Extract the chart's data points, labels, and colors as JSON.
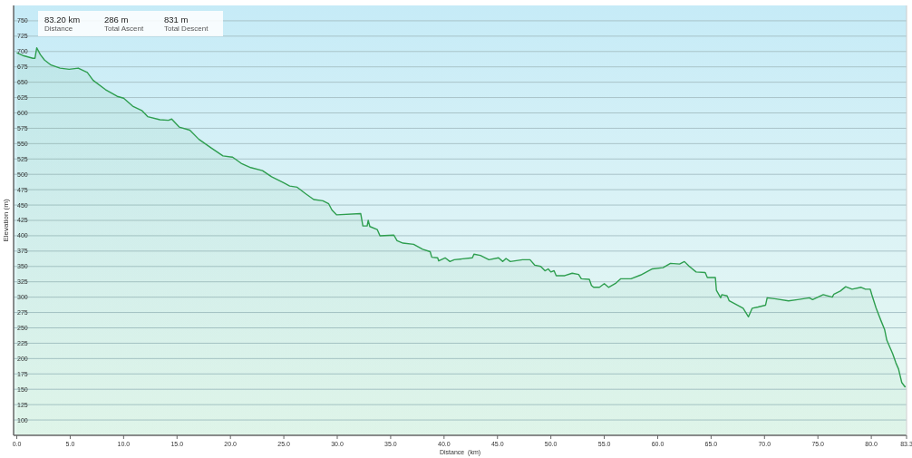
{
  "chart_data": {
    "type": "area",
    "xlabel": "Distance  (km)",
    "ylabel": "Elevation (m)",
    "annotations": [
      "83.20 km",
      "Distance",
      "286 m",
      "Total Ascent",
      "831 m",
      "Total Descent"
    ],
    "xlim": [
      -0.3,
      83.3
    ],
    "ylim": [
      75,
      775
    ],
    "xticks": [
      {
        "value": 0,
        "label": "0.0"
      },
      {
        "value": 5,
        "label": "5.0"
      },
      {
        "value": 10,
        "label": "10.0"
      },
      {
        "value": 15,
        "label": "15.0"
      },
      {
        "value": 20,
        "label": "20.0"
      },
      {
        "value": 25,
        "label": "25.0"
      },
      {
        "value": 30,
        "label": "30.0"
      },
      {
        "value": 35,
        "label": "35.0"
      },
      {
        "value": 40,
        "label": "40.0"
      },
      {
        "value": 45,
        "label": "45.0"
      },
      {
        "value": 50,
        "label": "50.0"
      },
      {
        "value": 55,
        "label": "55.0"
      },
      {
        "value": 60,
        "label": "60.0"
      },
      {
        "value": 65,
        "label": "65.0"
      },
      {
        "value": 70,
        "label": "70.0"
      },
      {
        "value": 75,
        "label": "75.0"
      },
      {
        "value": 80,
        "label": "80.0"
      },
      83.3
    ],
    "yticks": [
      100,
      125,
      150,
      175,
      200,
      225,
      250,
      275,
      300,
      325,
      350,
      375,
      400,
      425,
      450,
      475,
      500,
      525,
      550,
      575,
      600,
      625,
      650,
      675,
      700,
      725,
      750
    ],
    "grid": "y",
    "series": [
      {
        "color": "#2e9e4f",
        "x": [
          0,
          0.65,
          1.5,
          1.7,
          1.87,
          2.2,
          2.6,
          3.2,
          4.05,
          4.9,
          5.75,
          6.6,
          7.15,
          8.3,
          9.4,
          10.0,
          10.85,
          11.7,
          12.25,
          13.4,
          14.2,
          14.5,
          15.2,
          16.2,
          17.05,
          18.2,
          19.3,
          20.2,
          21.0,
          21.9,
          23.0,
          23.85,
          25.0,
          25.55,
          26.25,
          27.0,
          27.8,
          28.65,
          29.2,
          29.5,
          29.95,
          32.2,
          32.4,
          32.8,
          32.9,
          33.05,
          33.75,
          34.0,
          35.3,
          35.6,
          36.15,
          37.15,
          38.0,
          38.7,
          38.85,
          39.4,
          39.5,
          40.1,
          40.55,
          40.95,
          42.65,
          42.8,
          43.4,
          44.2,
          45.1,
          45.5,
          45.8,
          46.2,
          47.35,
          48.05,
          48.5,
          49.05,
          49.45,
          49.75,
          50.0,
          50.3,
          50.5,
          51.3,
          52.0,
          52.6,
          52.85,
          53.6,
          53.8,
          54.0,
          54.55,
          55.0,
          55.4,
          56.1,
          56.55,
          57.5,
          58.4,
          59.5,
          60.5,
          61.2,
          62.05,
          62.5,
          62.9,
          63.6,
          64.45,
          64.65,
          65.4,
          65.5,
          65.9,
          66.0,
          66.5,
          66.7,
          67.45,
          68.0,
          68.5,
          68.85,
          69.4,
          70.1,
          70.25,
          71.1,
          72.25,
          73.1,
          74.2,
          74.5,
          75.5,
          76.35,
          76.5,
          77.1,
          77.6,
          78.2,
          79.05,
          79.45,
          79.9,
          80.05,
          80.45,
          80.9,
          81.25,
          81.45,
          82.0,
          82.3,
          82.55,
          82.85,
          83.15,
          83.2
        ],
        "values": [
          698,
          693,
          689,
          689,
          706,
          695,
          686,
          678,
          673,
          671,
          673,
          666,
          653,
          638,
          627,
          624,
          611,
          604,
          594,
          589,
          588,
          590,
          577,
          572,
          557,
          543,
          530,
          528,
          518,
          511,
          506,
          496,
          486,
          481,
          479,
          469,
          459,
          457,
          452,
          442,
          434,
          436,
          416,
          416,
          425,
          415,
          410,
          400,
          401,
          392,
          388,
          386,
          378,
          374,
          365,
          364,
          359,
          364,
          358,
          361,
          364,
          370,
          368,
          361,
          364,
          358,
          363,
          358,
          361,
          361,
          352,
          350,
          343,
          346,
          341,
          343,
          335,
          335,
          339,
          337,
          330,
          329,
          319,
          316,
          316,
          322,
          316,
          323,
          330,
          330,
          336,
          346,
          348,
          355,
          354,
          358,
          351,
          341,
          340,
          332,
          332,
          311,
          299,
          304,
          302,
          294,
          287,
          282,
          268,
          282,
          284,
          287,
          299,
          297,
          294,
          296,
          299,
          296,
          304,
          300,
          305,
          310,
          317,
          313,
          316,
          313,
          313,
          304,
          282,
          262,
          247,
          230,
          208,
          193,
          183,
          161,
          154,
          155
        ]
      }
    ]
  }
}
